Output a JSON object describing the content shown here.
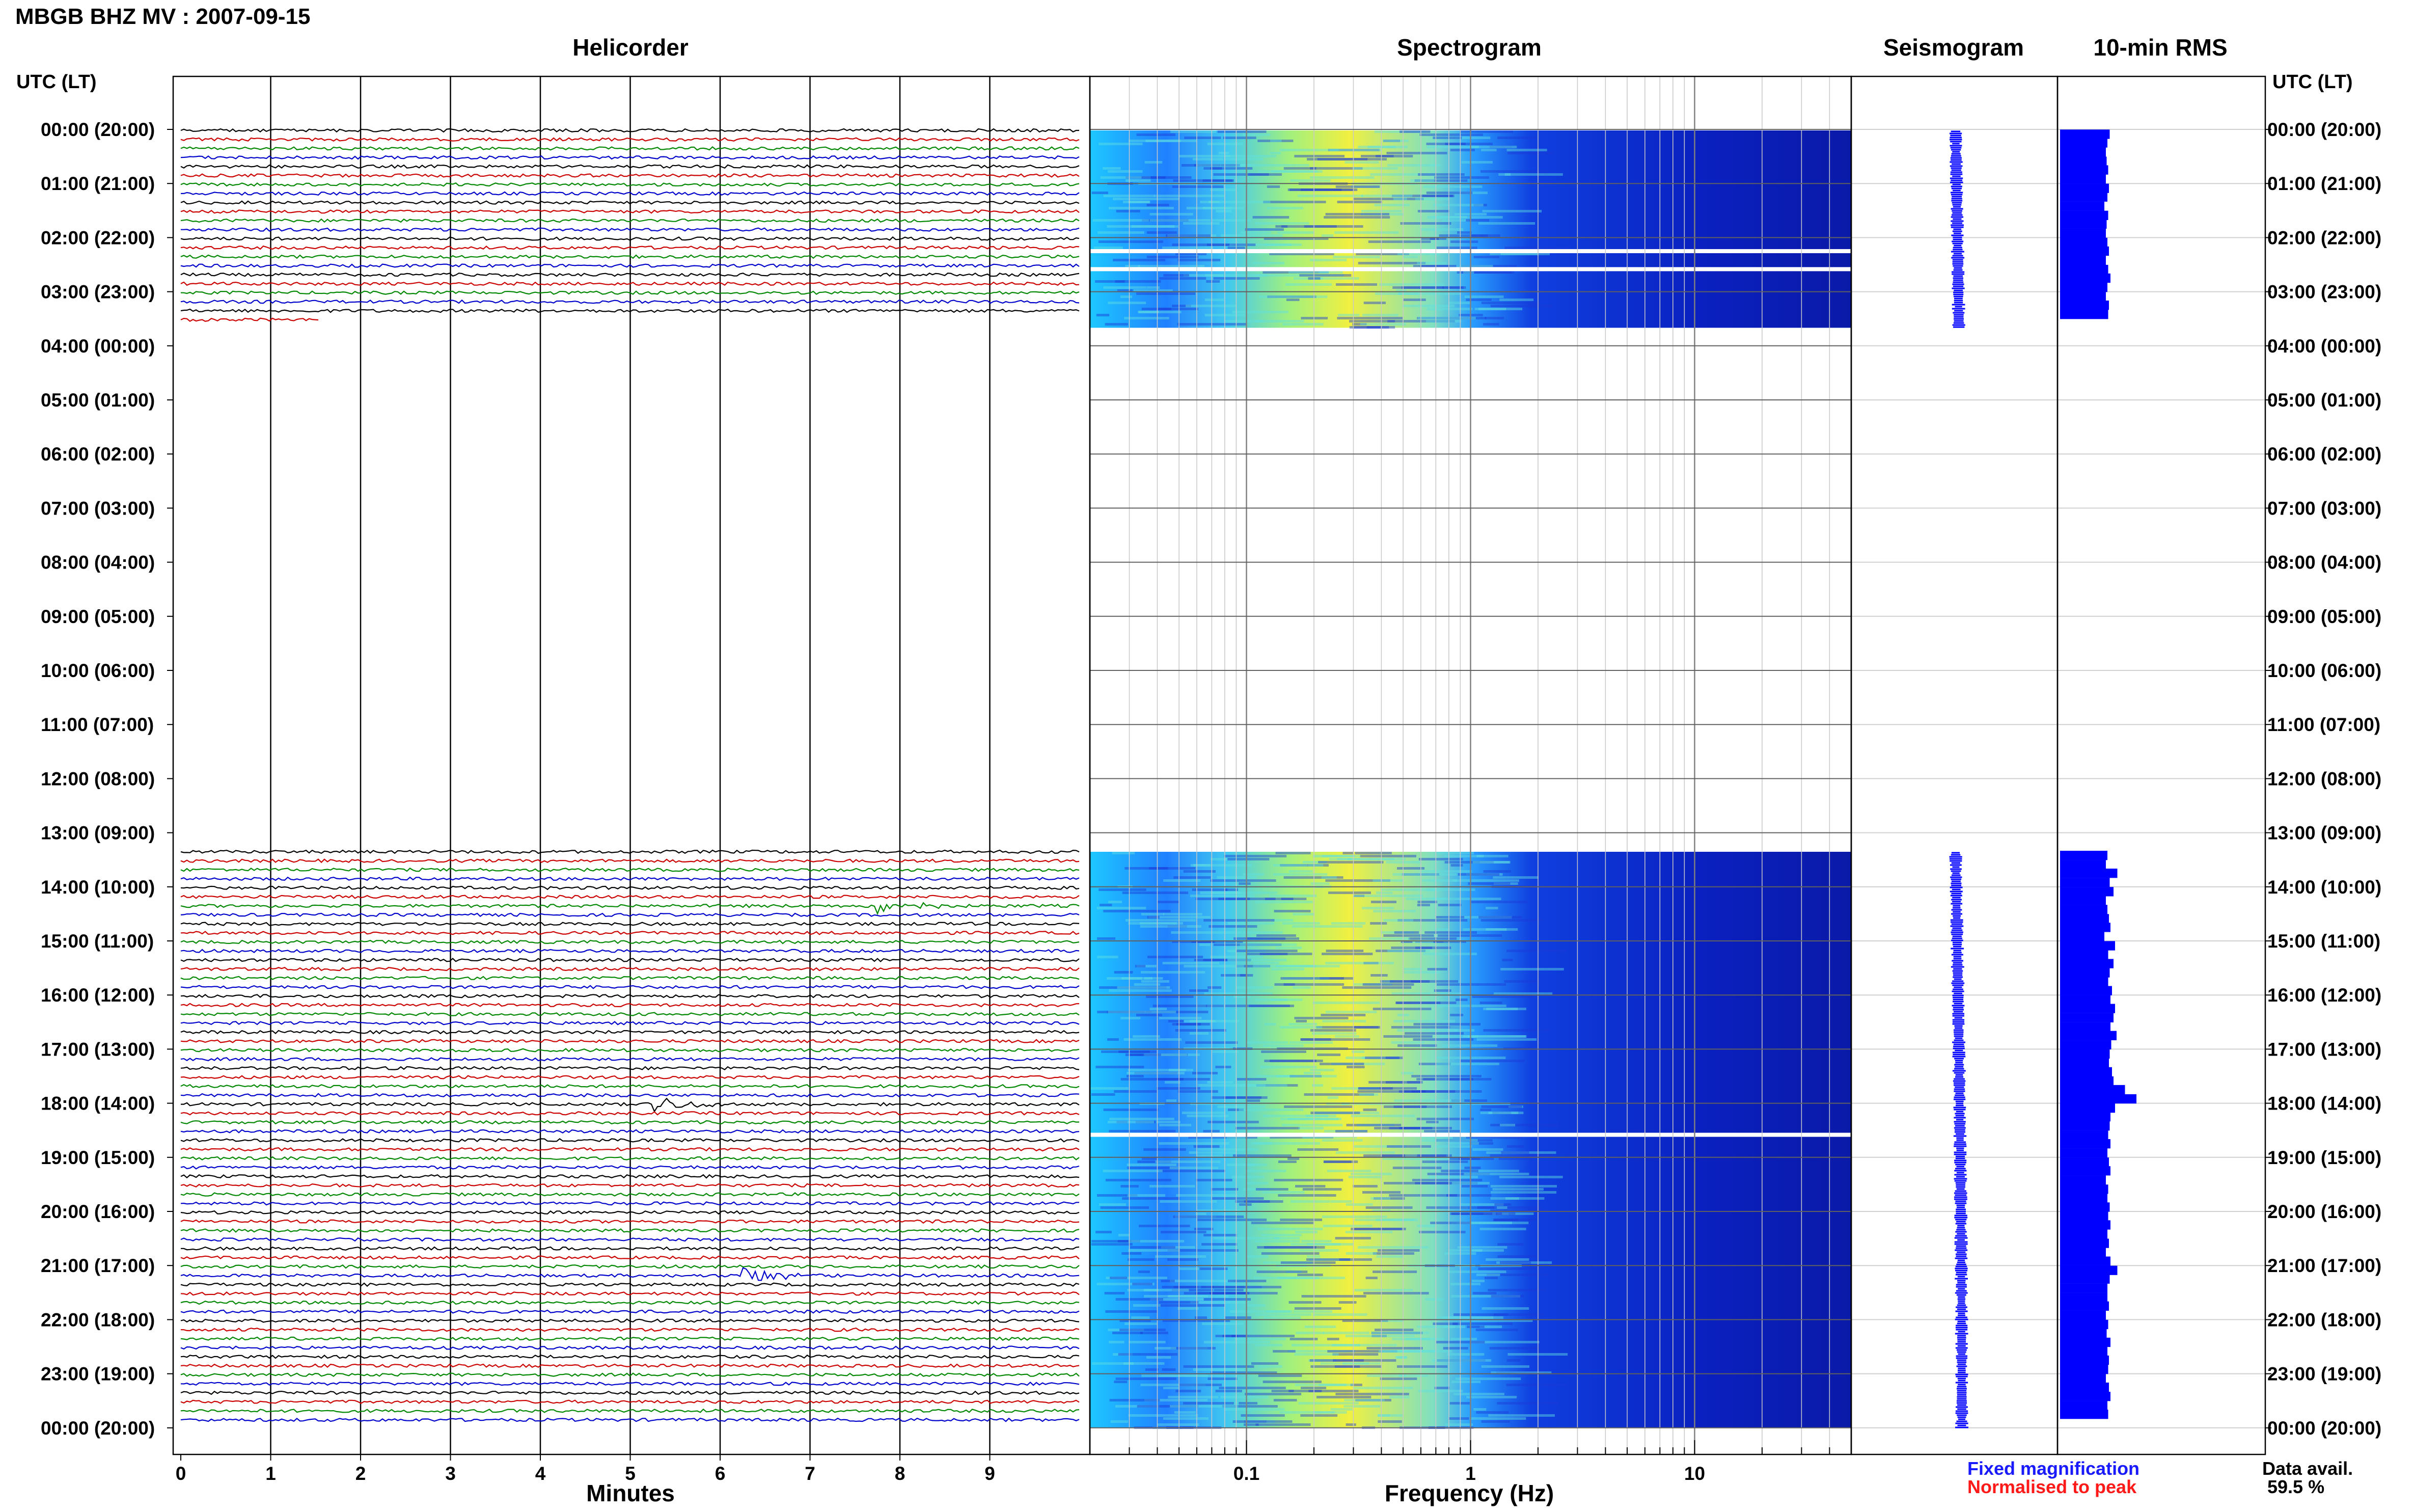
{
  "header": {
    "title": "MBGB BHZ MV : 2007-09-15"
  },
  "panels": {
    "helicorder": "Helicorder",
    "spectrogram": "Spectrogram",
    "seismogram": "Seismogram",
    "rms": "10-min RMS"
  },
  "time_axis_label": "UTC (LT)",
  "time_labels": [
    "00:00 (20:00)",
    "01:00 (21:00)",
    "02:00 (22:00)",
    "03:00 (23:00)",
    "04:00 (00:00)",
    "05:00 (01:00)",
    "06:00 (02:00)",
    "07:00 (03:00)",
    "08:00 (04:00)",
    "09:00 (05:00)",
    "10:00 (06:00)",
    "11:00 (07:00)",
    "12:00 (08:00)",
    "13:00 (09:00)",
    "14:00 (10:00)",
    "15:00 (11:00)",
    "16:00 (12:00)",
    "17:00 (13:00)",
    "18:00 (14:00)",
    "19:00 (15:00)",
    "20:00 (16:00)",
    "21:00 (17:00)",
    "22:00 (18:00)",
    "23:00 (19:00)",
    "00:00 (20:00)"
  ],
  "minutes_axis": {
    "label": "Minutes",
    "ticks": [
      "0",
      "1",
      "2",
      "3",
      "4",
      "5",
      "6",
      "7",
      "8",
      "9"
    ]
  },
  "frequency_axis": {
    "label": "Frequency (Hz)",
    "ticks": [
      "0.1",
      "1",
      "10"
    ],
    "scale": "log",
    "range": [
      0.02,
      50
    ]
  },
  "legend": {
    "fixed": "Fixed magnification",
    "normalised": "Normalised to peak"
  },
  "data_availability": {
    "label": "Data avail.",
    "value": "59.5 %"
  },
  "colors": {
    "trace_cycle": [
      "#000000",
      "#cc0000",
      "#008800",
      "#0000cc"
    ],
    "spectrum_low": "#0a1ec8",
    "spectrum_high": "#f0f040",
    "seismogram": "#0000ff",
    "rms": "#0000ff"
  },
  "chart_data": {
    "type": "heatmap",
    "title": "MBGB BHZ MV : 2007-09-15",
    "data_segments_utc": [
      [
        "00:00",
        "03:40"
      ],
      [
        "13:20",
        "24:00"
      ]
    ],
    "spectrogram_gaps_utc": [
      "02:15",
      "02:35",
      "18:35"
    ],
    "events": [
      {
        "time_utc": "18:00",
        "minute": 5.3
      },
      {
        "time_utc": "21:10",
        "minute": 6.3
      },
      {
        "time_utc": "14:20",
        "minute": 7.8
      }
    ],
    "rms_10min": {
      "x_hours": [
        0.17,
        0.33,
        0.5,
        0.67,
        0.83,
        1.0,
        1.17,
        1.33,
        1.5,
        1.67,
        1.83,
        2.0,
        2.17,
        2.33,
        2.5,
        2.67,
        2.83,
        3.0,
        3.17,
        3.33,
        3.5,
        13.5,
        13.67,
        13.83,
        14.0,
        14.17,
        14.33,
        14.5,
        14.67,
        14.83,
        15.0,
        15.17,
        15.33,
        15.5,
        15.67,
        15.83,
        16.0,
        16.17,
        16.33,
        16.5,
        16.67,
        16.83,
        17.0,
        17.17,
        17.33,
        17.5,
        17.67,
        17.83,
        18.0,
        18.17,
        18.33,
        18.5,
        18.67,
        18.83,
        19.0,
        19.17,
        19.33,
        19.5,
        19.67,
        19.83,
        20.0,
        20.17,
        20.33,
        20.5,
        20.67,
        20.83,
        21.0,
        21.17,
        21.33,
        21.5,
        21.67,
        21.83,
        22.0,
        22.17,
        22.33,
        22.5,
        22.67,
        22.83,
        23.0,
        23.17,
        23.33,
        23.5,
        23.67,
        23.83
      ],
      "values": [
        0.65,
        0.62,
        0.6,
        0.61,
        0.63,
        0.6,
        0.64,
        0.62,
        0.58,
        0.63,
        0.61,
        0.6,
        0.62,
        0.64,
        0.6,
        0.63,
        0.66,
        0.62,
        0.6,
        0.64,
        0.63,
        0.62,
        0.6,
        0.75,
        0.65,
        0.7,
        0.6,
        0.62,
        0.64,
        0.66,
        0.58,
        0.72,
        0.63,
        0.7,
        0.65,
        0.63,
        0.68,
        0.66,
        0.72,
        0.7,
        0.66,
        0.74,
        0.67,
        0.65,
        0.64,
        0.68,
        0.7,
        0.85,
        1.0,
        0.72,
        0.66,
        0.65,
        0.63,
        0.66,
        0.62,
        0.64,
        0.66,
        0.6,
        0.63,
        0.62,
        0.65,
        0.63,
        0.66,
        0.62,
        0.64,
        0.6,
        0.66,
        0.75,
        0.65,
        0.62,
        0.62,
        0.64,
        0.6,
        0.63,
        0.61,
        0.66,
        0.62,
        0.64,
        0.63,
        0.6,
        0.64,
        0.66,
        0.62,
        0.63
      ]
    }
  }
}
